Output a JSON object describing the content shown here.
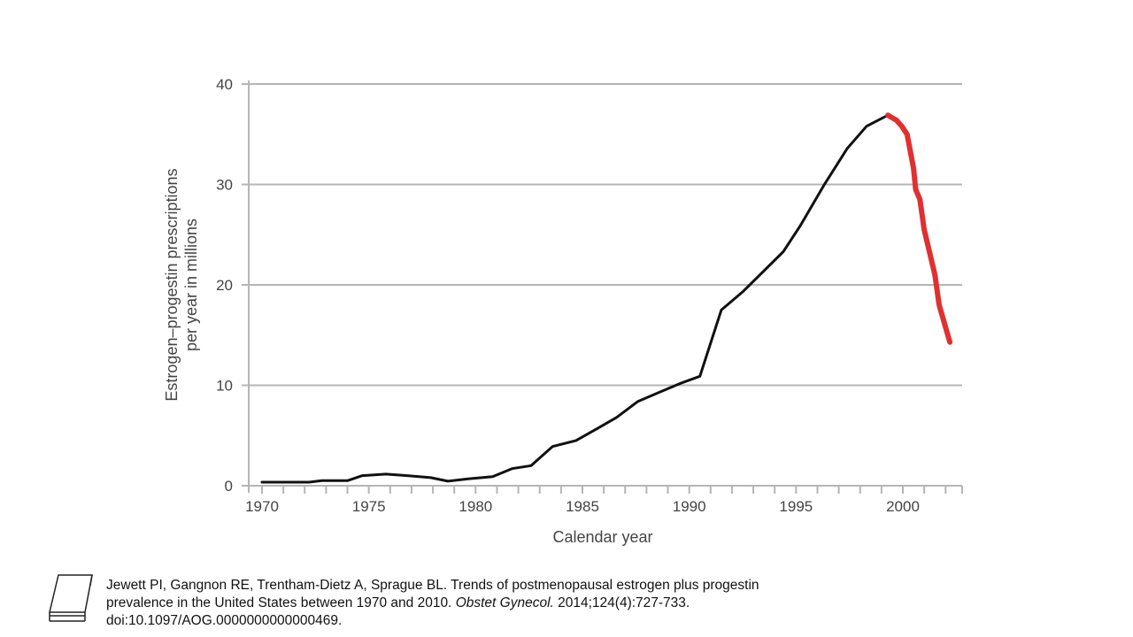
{
  "chart_data": {
    "type": "line",
    "title": "",
    "xlabel": "Calendar year",
    "ylabel_lines": [
      "Estrogen–progestin prescriptions",
      "per year in millions"
    ],
    "xlim": [
      1969.4,
      2002.8
    ],
    "ylim": [
      0,
      40
    ],
    "xticks": [
      1970,
      1975,
      1980,
      1985,
      1990,
      1995,
      2000
    ],
    "xtick_labels": [
      "1970",
      "1975",
      "1980",
      "1985",
      "1990",
      "1995",
      "2000"
    ],
    "yticks": [
      0,
      10,
      20,
      30,
      40
    ],
    "ytick_labels": [
      "0",
      "10",
      "20",
      "30",
      "40"
    ],
    "grid": "horizontal",
    "series": [
      {
        "color": "#111111",
        "x": [
          1970,
          1972.2,
          1972.8,
          1974.0,
          1974.7,
          1975.8,
          1976.8,
          1977.9,
          1978.7,
          1979.7,
          1980.8,
          1981.7,
          1982.6,
          1983.6,
          1984.7,
          1985.7,
          1986.6,
          1987.6,
          1988.6,
          1989.6,
          1990.5,
          1991.5,
          1992.5,
          1994.4,
          1995.2,
          1996.3,
          1997.4,
          1998.3,
          1999.3
        ],
        "y": [
          0.35,
          0.35,
          0.5,
          0.5,
          1.0,
          1.15,
          1.0,
          0.8,
          0.45,
          0.7,
          0.9,
          1.7,
          2.0,
          3.9,
          4.5,
          5.7,
          6.8,
          8.4,
          9.3,
          10.2,
          10.9,
          17.5,
          19.3,
          23.3,
          25.9,
          29.9,
          33.6,
          35.8,
          36.9
        ]
      },
      {
        "color": "#e03030",
        "x": [
          1999.3,
          1999.7,
          1999.95,
          2000.2,
          2000.5,
          2000.6,
          2000.8,
          2001.0,
          2001.5,
          2001.7,
          2002.2
        ],
        "y": [
          36.9,
          36.4,
          35.8,
          35.0,
          31.6,
          29.5,
          28.5,
          25.5,
          21.0,
          18.0,
          14.3
        ]
      }
    ]
  },
  "citation": {
    "text_before": "Jewett PI, Gangnon RE, Trentham-Dietz A, Sprague BL. Trends of postmenopausal estrogen plus progestin prevalence in the United States between 1970 and 2010. ",
    "journal": "Obstet Gynecol.",
    "text_after": " 2014;124(4):727-733. doi:10.1097/AOG.0000000000000469.",
    "icon": "book-icon"
  }
}
